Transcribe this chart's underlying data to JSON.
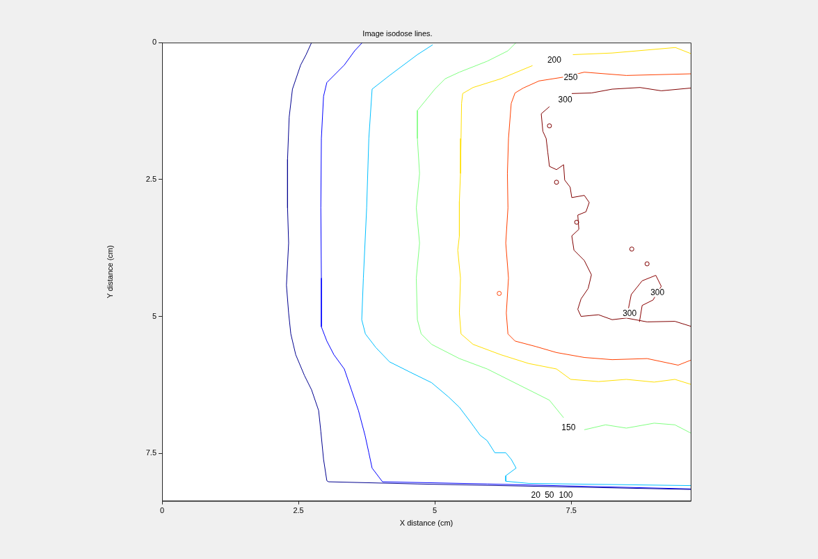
{
  "chart_data": {
    "type": "line",
    "title": "Image isodose lines.",
    "xlabel": "X distance (cm)",
    "ylabel": "Y distance (cm)",
    "xlim": [
      0,
      9.69
    ],
    "ylim": [
      8.37,
      0
    ],
    "xticks": [
      0,
      2.5,
      5,
      7.5
    ],
    "yticks": [
      0,
      2.5,
      5,
      7.5
    ],
    "marker": "none",
    "series": [
      {
        "color": "#00008f",
        "x": [
          2.74,
          2.64,
          2.54,
          2.39,
          2.33,
          2.3,
          2.3,
          2.32,
          2.28,
          2.32,
          2.36,
          2.45,
          2.61,
          2.74,
          2.87,
          2.91,
          2.96,
          3.02,
          3.05,
          4.68,
          7.23,
          9.69
        ],
        "values": [
          0,
          0.22,
          0.41,
          0.85,
          1.36,
          2.13,
          3.02,
          3.66,
          4.43,
          4.94,
          5.32,
          5.7,
          6.08,
          6.34,
          6.72,
          7.1,
          7.61,
          8.0,
          8.02,
          8.06,
          8.11,
          8.16
        ]
      },
      {
        "color": "#0000ff",
        "x": [
          3.67,
          3.53,
          3.34,
          3.02,
          2.96,
          2.92,
          2.91,
          2.92,
          2.92,
          3.02,
          3.15,
          3.34,
          3.47,
          3.6,
          3.72,
          3.79,
          3.85,
          4.04,
          5.96,
          9.69
        ],
        "values": [
          0,
          0.15,
          0.41,
          0.73,
          0.98,
          1.75,
          3.02,
          4.3,
          5.19,
          5.45,
          5.7,
          5.96,
          6.34,
          6.72,
          7.17,
          7.49,
          7.77,
          8.02,
          8.06,
          8.15
        ]
      },
      {
        "color": "#00bfff",
        "x": [
          4.96,
          4.68,
          4.17,
          3.85,
          3.79,
          3.75,
          3.69,
          3.66,
          3.727,
          3.92,
          4.17,
          4.55,
          4.94,
          5.25,
          5.45,
          5.64,
          5.83,
          5.96,
          6.1,
          6.3,
          6.4,
          6.49,
          6.3,
          6.3,
          6.72,
          9.69
        ],
        "values": [
          0.04,
          0.22,
          0.6,
          0.85,
          1.75,
          3.02,
          4.3,
          5.06,
          5.32,
          5.57,
          5.83,
          6.02,
          6.21,
          6.47,
          6.66,
          6.91,
          7.17,
          7.27,
          7.49,
          7.49,
          7.61,
          7.77,
          7.91,
          8.01,
          8.05,
          8.09
        ]
      },
      {
        "color": "#80ff80",
        "x": [
          6.49,
          6.34,
          5.96,
          5.45,
          5.19,
          5.0,
          4.68,
          4.68,
          4.72,
          4.66,
          4.72,
          4.66,
          4.68,
          4.75,
          4.94,
          5.45,
          5.96,
          6.34,
          6.72,
          7.1,
          7.36,
          7.49,
          7.74,
          8.13,
          8.51,
          9.02,
          9.4,
          9.69
        ],
        "values": [
          0,
          0.15,
          0.34,
          0.54,
          0.66,
          0.85,
          1.24,
          1.75,
          2.39,
          3.02,
          3.66,
          4.3,
          5.06,
          5.32,
          5.51,
          5.77,
          5.96,
          6.15,
          6.34,
          6.53,
          6.85,
          null,
          7.07,
          6.98,
          7.04,
          6.95,
          6.98,
          7.13
        ]
      },
      {
        "color": "#ffdf00",
        "x": [
          9.69,
          9.41,
          8.25,
          7.53,
          7.19,
          6.79,
          6.21,
          5.7,
          5.51,
          5.49,
          5.48,
          5.47,
          5.45,
          5.45,
          5.42,
          5.47,
          5.45,
          5.48,
          5.7,
          6.21,
          6.72,
          7.23,
          7.49,
          8.0,
          8.51,
          9.02,
          9.4,
          9.69
        ],
        "values": [
          0.2,
          0.09,
          0.19,
          0.22,
          null,
          0.42,
          0.66,
          0.82,
          0.93,
          1.11,
          1.75,
          2.39,
          2.9,
          3.53,
          3.79,
          4.3,
          4.94,
          5.32,
          5.51,
          5.7,
          5.86,
          5.96,
          6.15,
          6.19,
          6.15,
          6.2,
          6.15,
          6.24
        ]
      },
      {
        "color": "#ff4000",
        "x": [
          9.69,
          8.51,
          7.74,
          7.36,
          6.91,
          6.62,
          6.47,
          6.4,
          6.35,
          6.33,
          6.34,
          6.3,
          6.35,
          6.31,
          6.34,
          6.47,
          6.85,
          7.23,
          7.74,
          8.25,
          8.89,
          9.46,
          9.69
        ],
        "values": [
          0.57,
          0.6,
          0.54,
          0.63,
          0.7,
          0.83,
          0.92,
          1.11,
          1.75,
          2.39,
          3.02,
          3.66,
          4.3,
          4.94,
          5.32,
          5.45,
          5.55,
          5.66,
          5.75,
          5.79,
          5.77,
          5.89,
          5.8
        ]
      },
      {
        "type": "scatter",
        "marker": "circle",
        "color": "#ff4000",
        "x": [
          6.18
        ],
        "values": [
          4.58
        ]
      },
      {
        "color": "#800000",
        "x": [
          9.69,
          9.15,
          8.76,
          8.25,
          7.87,
          7.51,
          7.48,
          7.33,
          7.1,
          6.95,
          6.98,
          7.04,
          7.07,
          7.1,
          7.23,
          7.36,
          7.38,
          7.48,
          7.51,
          7.74,
          7.83,
          7.77,
          7.62,
          7.64,
          7.51,
          7.55,
          7.74,
          7.87,
          7.81,
          7.68,
          7.62,
          7.68,
          8.0,
          8.25,
          8.51,
          8.89,
          9.4,
          9.69
        ],
        "values": [
          0.83,
          0.88,
          0.82,
          0.85,
          0.92,
          0.93,
          null,
          null,
          1.17,
          1.3,
          1.62,
          1.75,
          2.0,
          2.26,
          2.32,
          2.23,
          2.51,
          2.64,
          2.83,
          2.79,
          2.92,
          3.09,
          3.15,
          3.41,
          3.53,
          3.79,
          3.98,
          4.24,
          4.49,
          4.68,
          4.87,
          5.0,
          4.97,
          5.06,
          5.03,
          5.1,
          5.09,
          5.18
        ]
      },
      {
        "color": "#8b0000",
        "x": [
          8.55,
          8.6,
          8.8,
          9.05,
          9.15,
          9.0,
          8.8,
          8.75
        ],
        "values": [
          4.85,
          4.6,
          4.35,
          4.25,
          4.45,
          4.7,
          4.8,
          5.1
        ]
      },
      {
        "type": "scatter",
        "marker": "circle",
        "color": "#800000",
        "x": [
          7.1,
          7.23,
          7.6,
          8.89,
          8.61
        ],
        "values": [
          1.52,
          2.55,
          3.28,
          4.04,
          3.77
        ]
      }
    ],
    "annotations": [
      {
        "text": "200",
        "x": 7.19,
        "y": 0.32
      },
      {
        "text": "250",
        "x": 7.49,
        "y": 0.64
      },
      {
        "text": "300",
        "x": 7.39,
        "y": 1.05
      },
      {
        "text": "300",
        "x": 9.08,
        "y": 4.57
      },
      {
        "text": "300",
        "x": 8.57,
        "y": 4.95
      },
      {
        "text": "150",
        "x": 7.45,
        "y": 7.03
      },
      {
        "text": "20",
        "x": 6.85,
        "y": 8.27
      },
      {
        "text": "50",
        "x": 7.1,
        "y": 8.27
      },
      {
        "text": "100",
        "x": 7.4,
        "y": 8.27
      }
    ]
  }
}
